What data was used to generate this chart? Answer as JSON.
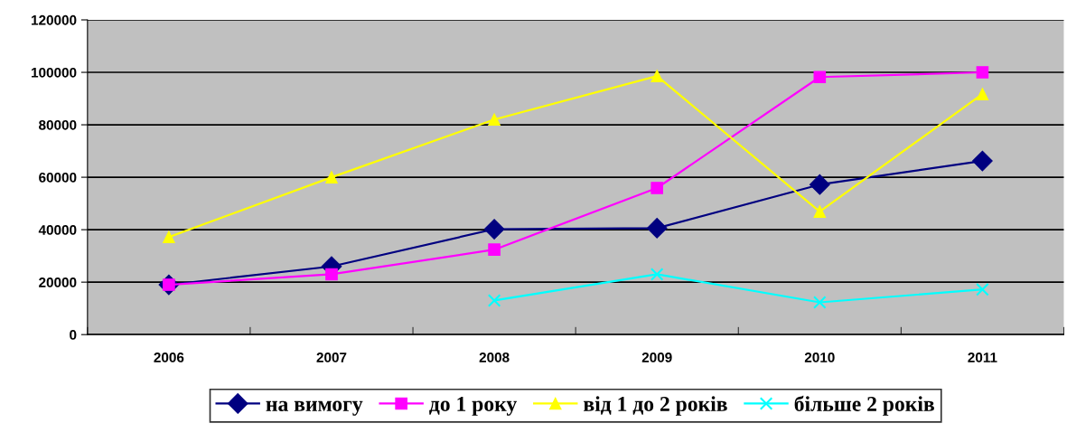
{
  "chart_data": {
    "type": "line",
    "categories": [
      "2006",
      "2007",
      "2008",
      "2009",
      "2010",
      "2011"
    ],
    "series": [
      {
        "name": "на вимогу",
        "color": "#000080",
        "marker": "diamond",
        "values": [
          19000,
          26000,
          40200,
          40600,
          57200,
          66200
        ]
      },
      {
        "name": "до 1 року",
        "color": "#ff00ff",
        "marker": "square",
        "values": [
          19000,
          23000,
          32400,
          55900,
          98200,
          100000
        ]
      },
      {
        "name": "від 1 до 2 років",
        "color": "#ffff00",
        "marker": "triangle",
        "values": [
          37200,
          60000,
          82000,
          98600,
          46900,
          91700
        ]
      },
      {
        "name": "більше 2 років",
        "color": "#00ffff",
        "marker": "cross",
        "values": [
          null,
          null,
          13000,
          23000,
          12300,
          17200
        ]
      }
    ],
    "ylim": [
      0,
      120000
    ],
    "yticks": [
      0,
      20000,
      40000,
      60000,
      80000,
      100000,
      120000
    ],
    "grid": "y",
    "legend": "bottom"
  }
}
